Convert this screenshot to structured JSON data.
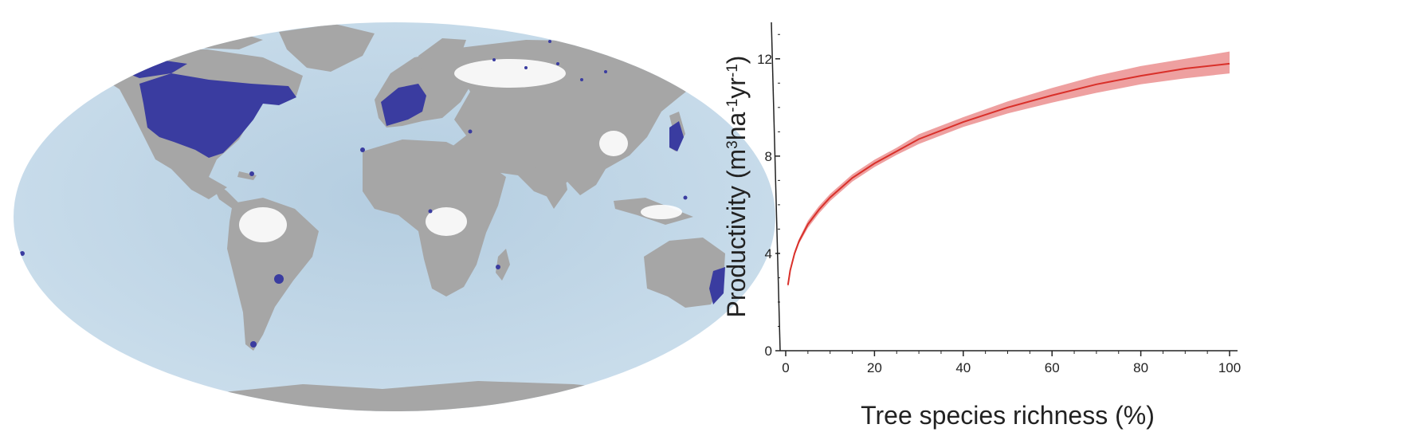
{
  "map": {
    "land_color": "#a6a6a6",
    "ocean_color": "#bcd4e6",
    "plot_color": "#3a3ca0",
    "unsampled_color": "#ffffff"
  },
  "chart_data": {
    "type": "line",
    "title": "",
    "xlabel": "Tree species richness (%)",
    "ylabel_parts": [
      "Productivity (m",
      "3",
      "ha",
      "-1",
      "yr",
      "-1",
      ")"
    ],
    "xlim": [
      0,
      100
    ],
    "ylim": [
      0,
      13.5
    ],
    "x_ticks": [
      0,
      20,
      40,
      60,
      80,
      100
    ],
    "y_ticks": [
      0,
      4,
      8,
      12
    ],
    "x_tick_labels": [
      "0",
      "20",
      "40",
      "60",
      "80",
      "100"
    ],
    "y_tick_labels": [
      "0",
      "4",
      "8",
      "12"
    ],
    "grid": false,
    "series": [
      {
        "line_color": "#d9302a",
        "band_color": "#e88080",
        "x": [
          0.5,
          1,
          2,
          3,
          5,
          7.5,
          10,
          15,
          20,
          25,
          30,
          40,
          50,
          60,
          70,
          80,
          90,
          100
        ],
        "y": [
          2.7,
          3.3,
          4.0,
          4.5,
          5.2,
          5.8,
          6.3,
          7.1,
          7.7,
          8.2,
          8.7,
          9.4,
          10.0,
          10.5,
          10.95,
          11.3,
          11.6,
          11.8
        ],
        "lower": [
          2.6,
          3.2,
          3.9,
          4.4,
          5.05,
          5.65,
          6.15,
          6.95,
          7.55,
          8.05,
          8.5,
          9.2,
          9.75,
          10.2,
          10.6,
          10.95,
          11.2,
          11.4
        ],
        "upper": [
          2.8,
          3.4,
          4.1,
          4.6,
          5.35,
          5.95,
          6.45,
          7.25,
          7.85,
          8.35,
          8.9,
          9.6,
          10.25,
          10.8,
          11.3,
          11.7,
          12.0,
          12.3
        ]
      }
    ]
  }
}
